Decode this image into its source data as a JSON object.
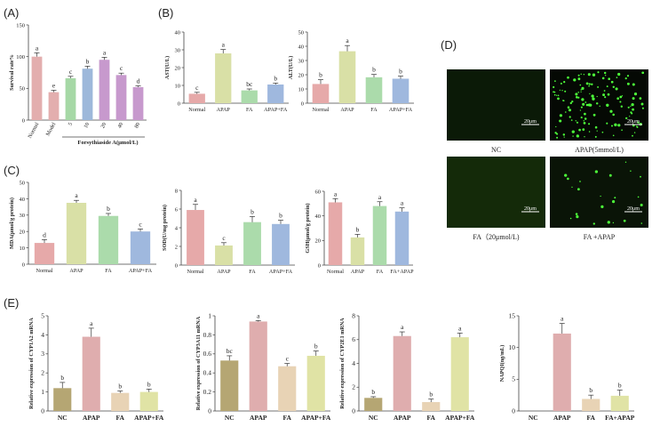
{
  "panels": [
    {
      "id": "A",
      "label": "(A)"
    },
    {
      "id": "B",
      "label": "(B)"
    },
    {
      "id": "C",
      "label": "(C)"
    },
    {
      "id": "D",
      "label": "(D)"
    },
    {
      "id": "E",
      "label": "(E)"
    }
  ],
  "chart_data": [
    {
      "id": "A_survival",
      "type": "bar",
      "panel": "A",
      "ylabel": "Survival rate%",
      "xlabel": "Forsythiaside A(μmol/L)",
      "ylim": [
        0,
        150
      ],
      "yticks": [
        0,
        50,
        100,
        150
      ],
      "rotate": true,
      "categories": [
        "Normal",
        "Model",
        "5",
        "10",
        "20",
        "40",
        "80"
      ],
      "values": [
        100,
        44,
        66,
        81,
        95,
        71,
        52
      ],
      "errors": [
        6,
        3,
        3,
        4,
        4,
        3,
        2
      ],
      "letters": [
        "a",
        "e",
        "c",
        "b",
        "a",
        "c",
        "d"
      ],
      "colors": [
        "#e3aeae",
        "#e3aeae",
        "#a6d8a6",
        "#9db8da",
        "#c799cd",
        "#c799cd",
        "#c799cd"
      ]
    },
    {
      "id": "B_AST",
      "type": "bar",
      "panel": "B",
      "ylabel": "AST(U/L)",
      "ylim": [
        0,
        40
      ],
      "yticks": [
        0,
        10,
        20,
        30,
        40
      ],
      "categories": [
        "Normal",
        "APAP",
        "FA",
        "APAP+FA"
      ],
      "values": [
        5.3,
        28,
        7.2,
        10.5
      ],
      "errors": [
        0.8,
        2.2,
        0.8,
        0.8
      ],
      "letters": [
        "c",
        "a",
        "bc",
        "b"
      ],
      "colors": [
        "#e6a9a9",
        "#d9e0a6",
        "#abdbab",
        "#9fb8de"
      ]
    },
    {
      "id": "B_ALT",
      "type": "bar",
      "panel": "B",
      "ylabel": "ALT(U/L)",
      "ylim": [
        0,
        50
      ],
      "yticks": [
        0,
        10,
        20,
        30,
        40,
        50
      ],
      "categories": [
        "Normal",
        "APAP",
        "FA",
        "APAP+FA"
      ],
      "values": [
        13.5,
        36.5,
        18.2,
        17.2
      ],
      "errors": [
        3,
        4,
        2,
        1.8
      ],
      "letters": [
        "b",
        "a",
        "b",
        "b"
      ],
      "colors": [
        "#e6a9a9",
        "#d9e0a6",
        "#abdbab",
        "#9fb8de"
      ]
    },
    {
      "id": "C_MDA",
      "type": "bar",
      "panel": "C",
      "ylabel": "MDA(μmol/g protein)",
      "ylim": [
        0,
        50
      ],
      "yticks": [
        0,
        10,
        20,
        30,
        40,
        50
      ],
      "categories": [
        "Normal",
        "APAP",
        "FA",
        "APAP+FA"
      ],
      "values": [
        13,
        37.5,
        29.5,
        20
      ],
      "errors": [
        2,
        1.5,
        1.5,
        1.5
      ],
      "letters": [
        "d",
        "a",
        "b",
        "c"
      ],
      "colors": [
        "#e6a9a9",
        "#d9e0a6",
        "#abdbab",
        "#9fb8de"
      ]
    },
    {
      "id": "C_SOD",
      "type": "bar",
      "panel": "C",
      "ylabel": "SOD(U/mg protein)",
      "ylim": [
        0,
        8
      ],
      "yticks": [
        0,
        2,
        4,
        6,
        8
      ],
      "categories": [
        "Normal",
        "APAP",
        "FA",
        "APAP+FA"
      ],
      "values": [
        5.9,
        2.1,
        4.6,
        4.4
      ],
      "errors": [
        0.6,
        0.3,
        0.6,
        0.4
      ],
      "letters": [
        "a",
        "c",
        "b",
        "b"
      ],
      "colors": [
        "#e6a9a9",
        "#d9e0a6",
        "#abdbab",
        "#9fb8de"
      ]
    },
    {
      "id": "C_GSH",
      "type": "bar",
      "panel": "C",
      "ylabel": "GSH(μmol/g protein)",
      "ylim": [
        0,
        60
      ],
      "yticks": [
        0,
        20,
        40,
        60
      ],
      "categories": [
        "Normal",
        "APAP",
        "FA",
        "FA+APAP"
      ],
      "values": [
        51,
        22.5,
        48,
        43.5
      ],
      "errors": [
        3,
        2.5,
        3.5,
        3
      ],
      "letters": [
        "a",
        "b",
        "a",
        "a"
      ],
      "colors": [
        "#e6a9a9",
        "#d9e0a6",
        "#abdbab",
        "#9fb8de"
      ]
    },
    {
      "id": "E_CYP1A2",
      "type": "bar",
      "panel": "E",
      "ylabel": "Relative expression of CYP1A2 mRNA",
      "ylim": [
        0,
        5
      ],
      "yticks": [
        0,
        1,
        2,
        3,
        4,
        5
      ],
      "categories": [
        "NC",
        "APAP",
        "FA",
        "APAP+FA"
      ],
      "values": [
        1.2,
        3.9,
        0.95,
        1.0
      ],
      "errors": [
        0.3,
        0.45,
        0.1,
        0.15
      ],
      "letters": [
        "b",
        "a",
        "b",
        "b"
      ],
      "colors": [
        "#b5a673",
        "#dfadae",
        "#e8d3b5",
        "#e0e3a5"
      ]
    },
    {
      "id": "E_CYP3A11",
      "type": "bar",
      "panel": "E",
      "ylabel": "Relative expression of CYP3A11 mRNA",
      "ylim": [
        0,
        1.0
      ],
      "yticks": [
        0.0,
        0.2,
        0.4,
        0.6,
        0.8,
        1.0
      ],
      "categories": [
        "NC",
        "APAP",
        "FA",
        "APAP+FA"
      ],
      "values": [
        0.53,
        0.94,
        0.47,
        0.58
      ],
      "errors": [
        0.05,
        0.01,
        0.03,
        0.05
      ],
      "letters": [
        "bc",
        "a",
        "c",
        "b"
      ],
      "colors": [
        "#b5a673",
        "#dfadae",
        "#e8d3b5",
        "#e0e3a5"
      ]
    },
    {
      "id": "E_CYP2E1",
      "type": "bar",
      "panel": "E",
      "ylabel": "Relative expression of CYP2E1 mRNA",
      "ylim": [
        0,
        8
      ],
      "yticks": [
        0,
        2,
        4,
        6,
        8
      ],
      "categories": [
        "NC",
        "APAP",
        "FA",
        "APAP+FA"
      ],
      "values": [
        1.1,
        6.3,
        0.75,
        6.2
      ],
      "errors": [
        0.1,
        0.35,
        0.25,
        0.35
      ],
      "letters": [
        "b",
        "a",
        "b",
        "a"
      ],
      "colors": [
        "#b5a673",
        "#dfadae",
        "#e8d3b5",
        "#e0e3a5"
      ]
    },
    {
      "id": "E_NAPQI",
      "type": "bar",
      "panel": "E",
      "ylabel": "NAPQI(ng/mL)",
      "ylim": [
        0,
        15
      ],
      "yticks": [
        0,
        5,
        10,
        15
      ],
      "categories": [
        "NC",
        "APAP",
        "FA",
        "FA+APAP"
      ],
      "values": [
        0,
        12.2,
        1.9,
        2.4
      ],
      "errors": [
        0,
        1.6,
        0.6,
        0.9
      ],
      "letters": [
        "",
        "a",
        "b",
        "b"
      ],
      "colors": [
        "#b5a673",
        "#dfadae",
        "#e8d3b5",
        "#e0e3a5"
      ]
    }
  ],
  "micrographs": [
    {
      "label": "NC",
      "scale": "20μm",
      "dots": 0
    },
    {
      "label": "APAP(5mmol/L)",
      "scale": "20μm",
      "dots": 140
    },
    {
      "label": "FA（20μmol/L)",
      "scale": "20μm",
      "dots": 0
    },
    {
      "label": "FA +APAP",
      "scale": "20μm",
      "dots": 24
    }
  ]
}
